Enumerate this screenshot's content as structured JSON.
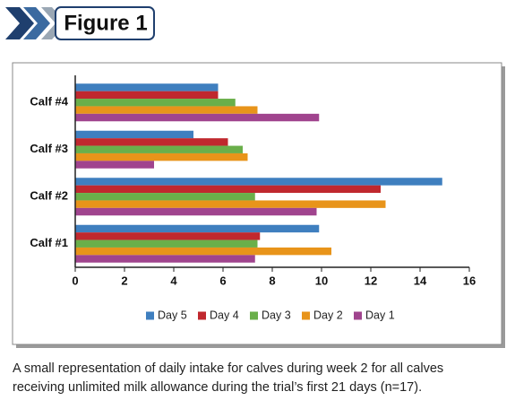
{
  "header": {
    "title": "Figure 1"
  },
  "chart_data": {
    "type": "hbar",
    "categories": [
      "Calf #1",
      "Calf #2",
      "Calf #3",
      "Calf #4"
    ],
    "series": [
      {
        "name": "Day 5",
        "color": "#3f7fbf",
        "values": [
          9.9,
          14.9,
          4.8,
          5.8
        ]
      },
      {
        "name": "Day 4",
        "color": "#c0282e",
        "values": [
          7.5,
          12.4,
          6.2,
          5.8
        ]
      },
      {
        "name": "Day 3",
        "color": "#6aaf4a",
        "values": [
          7.4,
          7.3,
          6.8,
          6.5
        ]
      },
      {
        "name": "Day 2",
        "color": "#e8941a",
        "values": [
          10.4,
          12.6,
          7.0,
          7.4
        ]
      },
      {
        "name": "Day 1",
        "color": "#a0448e",
        "values": [
          7.3,
          9.8,
          3.2,
          9.9
        ]
      }
    ],
    "xlim": [
      0,
      16
    ],
    "xticks": [
      0,
      2,
      4,
      6,
      8,
      10,
      12,
      14,
      16
    ],
    "legend": "bottom"
  },
  "caption": {
    "lines": [
      "A small representation of daily intake for calves during week 2 for all calves",
      "receiving unlimited milk allowance during the trial’s first 21 days (n=17)."
    ]
  }
}
